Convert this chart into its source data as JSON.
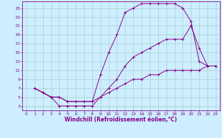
{
  "xlabel": "Windchill (Refroidissement éolien,°C)",
  "bg_color": "#cceeff",
  "grid_color": "#aacccc",
  "line_color": "#880088",
  "xlim": [
    -0.5,
    23.5
  ],
  "ylim": [
    2,
    26.5
  ],
  "xticks": [
    0,
    1,
    2,
    3,
    4,
    5,
    6,
    7,
    8,
    9,
    10,
    11,
    12,
    13,
    14,
    15,
    16,
    17,
    18,
    19,
    20,
    21,
    22,
    23
  ],
  "yticks": [
    3,
    5,
    7,
    9,
    11,
    13,
    15,
    17,
    19,
    21,
    23,
    25
  ],
  "line1_x": [
    1,
    2,
    3,
    4,
    5,
    6,
    7,
    8,
    9,
    10,
    11,
    12,
    13,
    14,
    15,
    16,
    17,
    18,
    19,
    20,
    21,
    22,
    23
  ],
  "line1_y": [
    7,
    6,
    5,
    5,
    4,
    4,
    4,
    4,
    10,
    15,
    19,
    24,
    25,
    26,
    26,
    26,
    26,
    26,
    25,
    22,
    13,
    12,
    12
  ],
  "line2_x": [
    1,
    2,
    3,
    4,
    5,
    6,
    7,
    8,
    9,
    10,
    11,
    12,
    13,
    14,
    15,
    16,
    17,
    18,
    19,
    20,
    21,
    22,
    23
  ],
  "line2_y": [
    7,
    6,
    5,
    5,
    4,
    4,
    4,
    4,
    5,
    6,
    7,
    8,
    9,
    9,
    10,
    10,
    11,
    11,
    11,
    11,
    11,
    12,
    12
  ],
  "line3_x": [
    1,
    2,
    3,
    4,
    5,
    6,
    7,
    8,
    9,
    10,
    11,
    12,
    13,
    14,
    15,
    16,
    17,
    18,
    19,
    20,
    21,
    22,
    23
  ],
  "line3_y": [
    7,
    6,
    5,
    3,
    3,
    3,
    3,
    3,
    5,
    7,
    9,
    12,
    14,
    15,
    16,
    17,
    18,
    18,
    18,
    21,
    16,
    12,
    12
  ],
  "xlabel_fontsize": 5.5,
  "tick_fontsize": 4.5,
  "lw": 0.7,
  "ms": 2.5
}
